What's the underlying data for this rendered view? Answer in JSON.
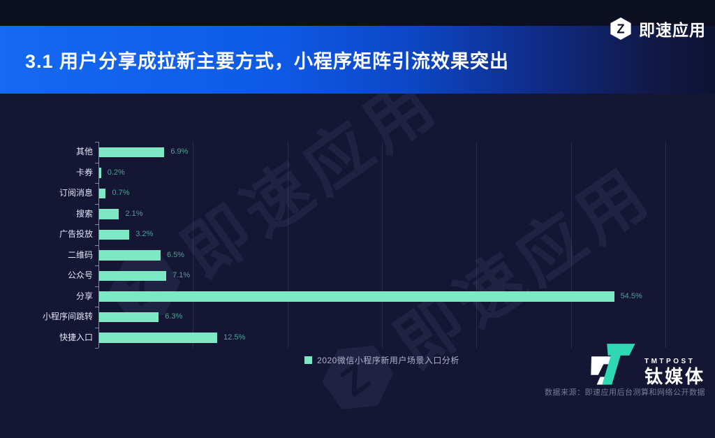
{
  "header": {
    "title": "3.1 用户分享成拉新主要方式，小程序矩阵引流效果突出",
    "brand_name": "即速应用"
  },
  "watermark": {
    "text": "即速应用"
  },
  "chart_data": {
    "type": "bar",
    "orientation": "horizontal",
    "categories": [
      "其他",
      "卡券",
      "订阅消息",
      "搜索",
      "广告投放",
      "二维码",
      "公众号",
      "分享",
      "小程序间跳转",
      "快捷入口"
    ],
    "values": [
      6.9,
      0.2,
      0.7,
      2.1,
      3.2,
      6.5,
      7.1,
      54.5,
      6.3,
      12.5
    ],
    "value_suffix": "%",
    "xlim": [
      0,
      60
    ],
    "gridline_interval": 10,
    "grid": true,
    "legend": "2020微信小程序新用户场景入口分析",
    "legend_position": "bottom-center",
    "bar_color": "#7ee7c4",
    "value_label_color": "#4fa096"
  },
  "footer": {
    "source": "数据来源：即速应用后台测算和网络公开数据",
    "tmt_brand_en": "TMTPOST",
    "tmt_brand_cn": "钛媒体"
  },
  "colors": {
    "background": "#141633",
    "header_blue": "#1569f2",
    "accent_teal": "#7ee7c4"
  }
}
